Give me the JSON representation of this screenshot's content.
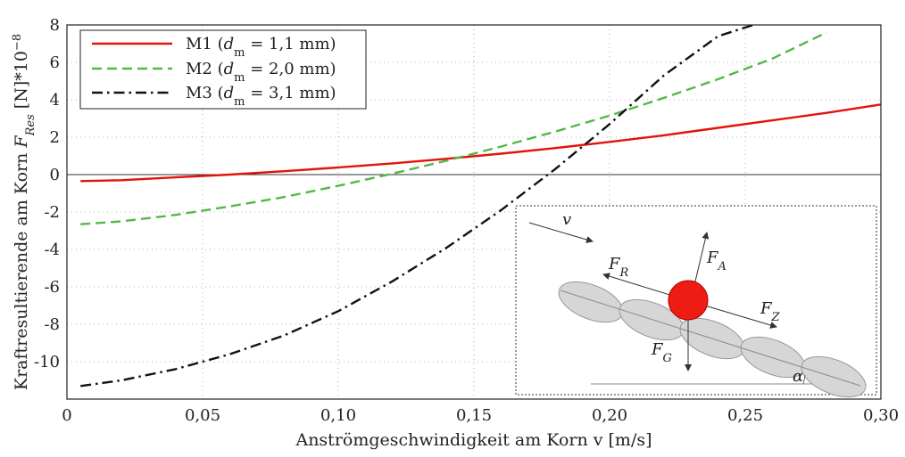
{
  "chart_data": {
    "type": "line",
    "xlabel": "Anströmgeschwindigkeit am Korn v [m/s]",
    "ylabel": "Kraftresultierende am Korn F_Res [N]*10^-8",
    "ylabel_parts": {
      "pre": "Kraftresultierende am Korn ",
      "F": "F",
      "sub": "Res",
      "post": " [N]*10",
      "sup": "−8"
    },
    "xlim": [
      0,
      0.3
    ],
    "ylim": [
      -12,
      8
    ],
    "xticks": [
      {
        "v": 0,
        "label": "0"
      },
      {
        "v": 0.05,
        "label": "0,05"
      },
      {
        "v": 0.1,
        "label": "0,10"
      },
      {
        "v": 0.15,
        "label": "0,15"
      },
      {
        "v": 0.2,
        "label": "0,20"
      },
      {
        "v": 0.25,
        "label": "0,25"
      },
      {
        "v": 0.3,
        "label": "0,30"
      }
    ],
    "yticks": [
      {
        "v": 8,
        "label": "8"
      },
      {
        "v": 6,
        "label": "6"
      },
      {
        "v": 4,
        "label": "4"
      },
      {
        "v": 2,
        "label": "2"
      },
      {
        "v": 0,
        "label": "0"
      },
      {
        "v": -2,
        "label": "-2"
      },
      {
        "v": -4,
        "label": "-4"
      },
      {
        "v": -6,
        "label": "-6"
      },
      {
        "v": -8,
        "label": "-8"
      },
      {
        "v": -10,
        "label": "-10"
      }
    ],
    "grid": true,
    "zero_line": true,
    "legend_position": "top-left",
    "series": [
      {
        "name": "M1 (d_m = 1,1 mm)",
        "legend_parts": {
          "pre": "M1 (",
          "d": "d",
          "sub": "m",
          "post": " = 1,1 mm)"
        },
        "color": "#e3120b",
        "dash": "solid",
        "x": [
          0.005,
          0.02,
          0.04,
          0.06,
          0.08,
          0.1,
          0.12,
          0.14,
          0.16,
          0.18,
          0.2,
          0.22,
          0.24,
          0.26,
          0.28,
          0.3
        ],
        "y": [
          -0.35,
          -0.3,
          -0.15,
          0.0,
          0.18,
          0.38,
          0.6,
          0.85,
          1.12,
          1.42,
          1.75,
          2.1,
          2.5,
          2.9,
          3.3,
          3.75
        ]
      },
      {
        "name": "M2 (d_m = 2,0 mm)",
        "legend_parts": {
          "pre": "M2 (",
          "d": "d",
          "sub": "m",
          "post": " = 2,0 mm)"
        },
        "color": "#52b848",
        "dash": "dashed",
        "x": [
          0.005,
          0.02,
          0.04,
          0.06,
          0.08,
          0.1,
          0.12,
          0.14,
          0.16,
          0.18,
          0.2,
          0.22,
          0.24,
          0.26,
          0.28
        ],
        "y": [
          -2.65,
          -2.5,
          -2.15,
          -1.7,
          -1.2,
          -0.6,
          0.05,
          0.75,
          1.5,
          2.3,
          3.15,
          4.1,
          5.1,
          6.2,
          7.6
        ]
      },
      {
        "name": "M3 (d_m = 3,1 mm)",
        "legend_parts": {
          "pre": "M3 (",
          "d": "d",
          "sub": "m",
          "post": " = 3,1 mm)"
        },
        "color": "#111111",
        "dash": "dashdot",
        "x": [
          0.005,
          0.02,
          0.04,
          0.06,
          0.08,
          0.1,
          0.12,
          0.14,
          0.16,
          0.18,
          0.2,
          0.22,
          0.24,
          0.253
        ],
        "y": [
          -11.3,
          -11.0,
          -10.4,
          -9.6,
          -8.6,
          -7.3,
          -5.7,
          -3.9,
          -1.9,
          0.3,
          2.7,
          5.3,
          7.4,
          8.0
        ]
      }
    ],
    "inset": {
      "labels": {
        "v": "v",
        "FA": {
          "F": "F",
          "sub": "A"
        },
        "FR": {
          "F": "F",
          "sub": "R"
        },
        "FZ": {
          "F": "F",
          "sub": "Z"
        },
        "FG": {
          "F": "F",
          "sub": "G"
        },
        "alpha": "α"
      },
      "sphere_color": "#ee1c14",
      "ellipse_color": "#d6d6d6"
    }
  }
}
